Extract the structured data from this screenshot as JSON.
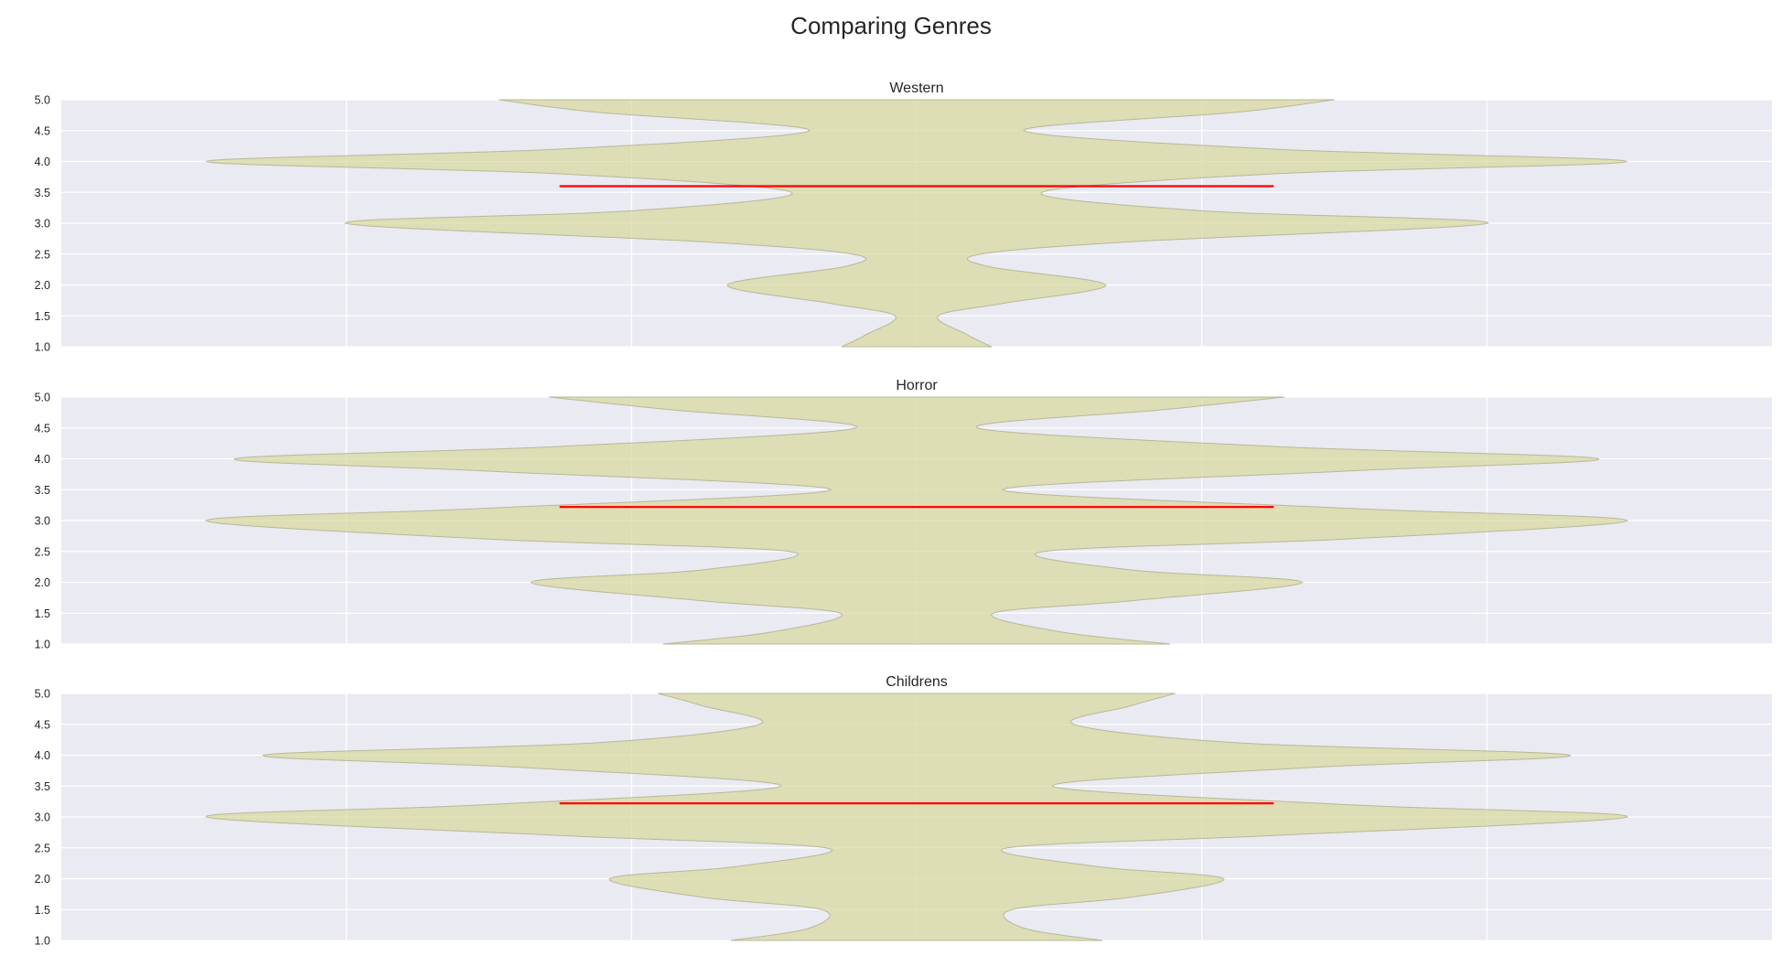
{
  "title": "Comparing Genres",
  "colors": {
    "axes_background": "#eaeaf2",
    "grid": "#ffffff",
    "violin_fill": "#d6d695",
    "mean_line": "#ff0000",
    "text": "#262626"
  },
  "chart_data": [
    {
      "type": "violin",
      "title": "Western",
      "ylim": [
        1.0,
        5.0
      ],
      "yticks": [
        "1.0",
        "1.5",
        "2.0",
        "2.5",
        "3.0",
        "3.5",
        "4.0",
        "4.5",
        "5.0"
      ],
      "xticks_visible": false,
      "grid": true,
      "mean_rating": 3.6,
      "mean_line_halfwidth": 0.5,
      "violin_halfwidth_profile": [
        {
          "rating": 1.0,
          "halfwidth": 0.105
        },
        {
          "rating": 1.2,
          "halfwidth": 0.07
        },
        {
          "rating": 1.5,
          "halfwidth": 0.03
        },
        {
          "rating": 1.7,
          "halfwidth": 0.12
        },
        {
          "rating": 2.0,
          "halfwidth": 0.265
        },
        {
          "rating": 2.3,
          "halfwidth": 0.1
        },
        {
          "rating": 2.5,
          "halfwidth": 0.09
        },
        {
          "rating": 2.7,
          "halfwidth": 0.3
        },
        {
          "rating": 3.0,
          "halfwidth": 0.8
        },
        {
          "rating": 3.2,
          "halfwidth": 0.4
        },
        {
          "rating": 3.5,
          "halfwidth": 0.175
        },
        {
          "rating": 3.8,
          "halfwidth": 0.5
        },
        {
          "rating": 4.0,
          "halfwidth": 0.995
        },
        {
          "rating": 4.2,
          "halfwidth": 0.5
        },
        {
          "rating": 4.5,
          "halfwidth": 0.15
        },
        {
          "rating": 4.8,
          "halfwidth": 0.45
        },
        {
          "rating": 5.0,
          "halfwidth": 0.585
        }
      ]
    },
    {
      "type": "violin",
      "title": "Horror",
      "ylim": [
        1.0,
        5.0
      ],
      "yticks": [
        "1.0",
        "1.5",
        "2.0",
        "2.5",
        "3.0",
        "3.5",
        "4.0",
        "4.5",
        "5.0"
      ],
      "xticks_visible": false,
      "grid": true,
      "mean_rating": 3.22,
      "mean_line_halfwidth": 0.5,
      "violin_halfwidth_profile": [
        {
          "rating": 1.0,
          "halfwidth": 0.355
        },
        {
          "rating": 1.2,
          "halfwidth": 0.2
        },
        {
          "rating": 1.5,
          "halfwidth": 0.107
        },
        {
          "rating": 1.7,
          "halfwidth": 0.3
        },
        {
          "rating": 2.0,
          "halfwidth": 0.54
        },
        {
          "rating": 2.2,
          "halfwidth": 0.3
        },
        {
          "rating": 2.5,
          "halfwidth": 0.178
        },
        {
          "rating": 2.7,
          "halfwidth": 0.6
        },
        {
          "rating": 3.0,
          "halfwidth": 0.995
        },
        {
          "rating": 3.2,
          "halfwidth": 0.6
        },
        {
          "rating": 3.5,
          "halfwidth": 0.12
        },
        {
          "rating": 3.8,
          "halfwidth": 0.6
        },
        {
          "rating": 4.0,
          "halfwidth": 0.955
        },
        {
          "rating": 4.2,
          "halfwidth": 0.5
        },
        {
          "rating": 4.5,
          "halfwidth": 0.085
        },
        {
          "rating": 4.8,
          "halfwidth": 0.35
        },
        {
          "rating": 5.0,
          "halfwidth": 0.515
        }
      ]
    },
    {
      "type": "violin",
      "title": "Childrens",
      "ylim": [
        1.0,
        5.0
      ],
      "yticks": [
        "1.0",
        "1.5",
        "2.0",
        "2.5",
        "3.0",
        "3.5",
        "4.0",
        "4.5",
        "5.0"
      ],
      "xticks_visible": false,
      "grid": true,
      "mean_rating": 3.22,
      "mean_line_halfwidth": 0.5,
      "violin_halfwidth_profile": [
        {
          "rating": 1.0,
          "halfwidth": 0.26
        },
        {
          "rating": 1.2,
          "halfwidth": 0.15
        },
        {
          "rating": 1.5,
          "halfwidth": 0.133
        },
        {
          "rating": 1.7,
          "halfwidth": 0.3
        },
        {
          "rating": 2.0,
          "halfwidth": 0.43
        },
        {
          "rating": 2.2,
          "halfwidth": 0.25
        },
        {
          "rating": 2.5,
          "halfwidth": 0.127
        },
        {
          "rating": 2.7,
          "halfwidth": 0.5
        },
        {
          "rating": 3.0,
          "halfwidth": 0.995
        },
        {
          "rating": 3.2,
          "halfwidth": 0.6
        },
        {
          "rating": 3.5,
          "halfwidth": 0.19
        },
        {
          "rating": 3.8,
          "halfwidth": 0.55
        },
        {
          "rating": 4.0,
          "halfwidth": 0.915
        },
        {
          "rating": 4.2,
          "halfwidth": 0.45
        },
        {
          "rating": 4.5,
          "halfwidth": 0.22
        },
        {
          "rating": 4.8,
          "halfwidth": 0.3
        },
        {
          "rating": 5.0,
          "halfwidth": 0.362
        }
      ]
    }
  ]
}
